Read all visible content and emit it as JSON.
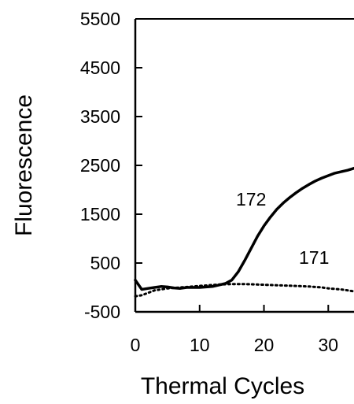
{
  "chart_data": {
    "type": "line",
    "title": "",
    "xlabel": "Thermal Cycles",
    "ylabel": "Fluorescence",
    "xlim": [
      0,
      34
    ],
    "ylim": [
      -500,
      5500
    ],
    "x_ticks": [
      0,
      10,
      20,
      30
    ],
    "y_ticks": [
      5500,
      4500,
      3500,
      2500,
      1500,
      500,
      -500
    ],
    "grid": false,
    "legend": "none",
    "series": [
      {
        "name": "172",
        "style": "solid",
        "x": [
          0,
          1,
          2,
          3,
          4,
          5,
          6,
          7,
          8,
          9,
          10,
          11,
          12,
          13,
          14,
          15,
          16,
          17,
          18,
          19,
          20,
          21,
          22,
          23,
          24,
          25,
          26,
          27,
          28,
          29,
          30,
          31,
          32,
          33,
          34
        ],
        "y": [
          150,
          -40,
          -20,
          0,
          20,
          10,
          -10,
          -20,
          0,
          0,
          0,
          10,
          20,
          50,
          80,
          150,
          320,
          550,
          800,
          1050,
          1260,
          1440,
          1600,
          1730,
          1840,
          1940,
          2030,
          2110,
          2180,
          2240,
          2290,
          2340,
          2370,
          2400,
          2440
        ]
      },
      {
        "name": "171",
        "style": "dotted",
        "x": [
          0,
          1,
          2,
          3,
          4,
          5,
          6,
          7,
          8,
          9,
          10,
          11,
          12,
          13,
          14,
          15,
          16,
          17,
          18,
          19,
          20,
          21,
          22,
          23,
          24,
          25,
          26,
          27,
          28,
          29,
          30,
          31,
          32,
          33,
          34
        ],
        "y": [
          -180,
          -160,
          -110,
          -60,
          -40,
          -20,
          -10,
          0,
          10,
          20,
          30,
          40,
          50,
          60,
          65,
          70,
          70,
          70,
          65,
          60,
          55,
          50,
          45,
          40,
          35,
          30,
          25,
          20,
          10,
          0,
          -20,
          -30,
          -40,
          -60,
          -80
        ]
      }
    ]
  }
}
